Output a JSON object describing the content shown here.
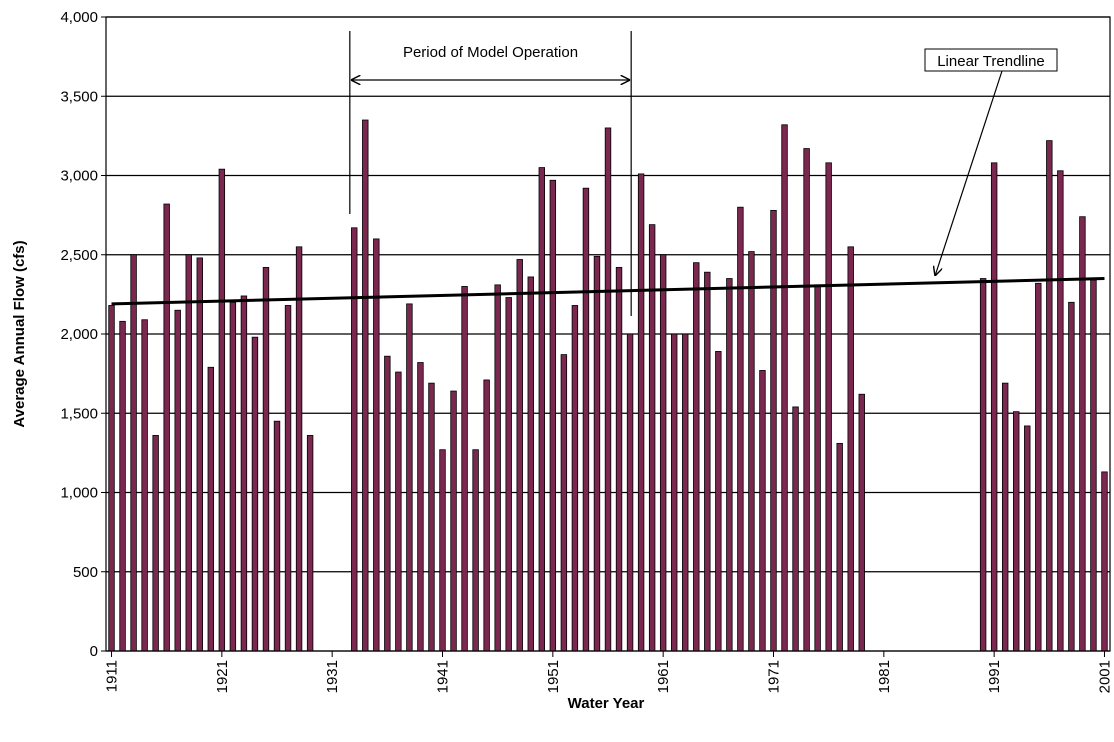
{
  "chart_data": {
    "type": "bar",
    "x_label": "Water Year",
    "y_label": "Average Annual Flow (cfs)",
    "x": [
      1911,
      1912,
      1913,
      1914,
      1915,
      1916,
      1917,
      1918,
      1919,
      1920,
      1921,
      1922,
      1923,
      1924,
      1925,
      1926,
      1927,
      1928,
      1929,
      1930,
      1931,
      1932,
      1933,
      1934,
      1935,
      1936,
      1937,
      1938,
      1939,
      1940,
      1941,
      1942,
      1943,
      1944,
      1945,
      1946,
      1947,
      1948,
      1949,
      1950,
      1951,
      1952,
      1953,
      1954,
      1955,
      1956,
      1957,
      1958,
      1959,
      1960,
      1961,
      1962,
      1963,
      1964,
      1965,
      1966,
      1967,
      1968,
      1969,
      1970,
      1971,
      1972,
      1973,
      1974,
      1975,
      1976,
      1977,
      1978,
      1979,
      1980,
      1981,
      1982,
      1983,
      1984,
      1985,
      1986,
      1987,
      1988,
      1989,
      1990,
      1991,
      1992,
      1993,
      1994,
      1995,
      1996,
      1997,
      1998,
      1999,
      2000,
      2001
    ],
    "values": [
      2180,
      2080,
      2500,
      2090,
      1360,
      2820,
      2150,
      2500,
      2480,
      1790,
      3040,
      2200,
      2240,
      1980,
      2420,
      1450,
      2180,
      2550,
      1360,
      null,
      null,
      null,
      2670,
      3350,
      2600,
      1860,
      1760,
      2190,
      1820,
      1690,
      1270,
      1640,
      2300,
      1270,
      1710,
      2310,
      2230,
      2470,
      2360,
      3050,
      2970,
      1870,
      2180,
      2920,
      2490,
      3300,
      2420,
      2000,
      3010,
      2690,
      2500,
      2000,
      2000,
      2450,
      2390,
      1890,
      2350,
      2800,
      2520,
      1770,
      2780,
      3320,
      1540,
      3170,
      2310,
      3080,
      1310,
      2550,
      1620,
      null,
      null,
      null,
      null,
      null,
      null,
      null,
      null,
      null,
      null,
      2350,
      3080,
      1690,
      1510,
      1420,
      2320,
      3220,
      3030,
      2200,
      2740,
      2340,
      1130
    ],
    "color": "#7b2850",
    "xlim": [
      1910.5,
      2001.5
    ],
    "xticks": [
      1911,
      1921,
      1931,
      1941,
      1951,
      1961,
      1971,
      1981,
      1991,
      2001
    ],
    "ylim": [
      0,
      4000
    ],
    "yticks": [
      0,
      500,
      {
        "value": 1000,
        "label": "1,000"
      },
      {
        "value": 1500,
        "label": "1,500"
      },
      {
        "value": 2000,
        "label": "2,000"
      },
      {
        "value": 2500,
        "label": "2,500"
      },
      {
        "value": 3000,
        "label": "3,000"
      },
      {
        "value": 3500,
        "label": "3,500"
      },
      {
        "value": 4000,
        "label": "4,000"
      }
    ],
    "grid": true,
    "trendline": {
      "name": "Linear Trendline",
      "x": [
        1911,
        2001
      ],
      "values": [
        2190,
        2350
      ]
    },
    "period": {
      "label": "Period of Model Operation",
      "x": [
        1932.6,
        1958.1
      ]
    }
  }
}
